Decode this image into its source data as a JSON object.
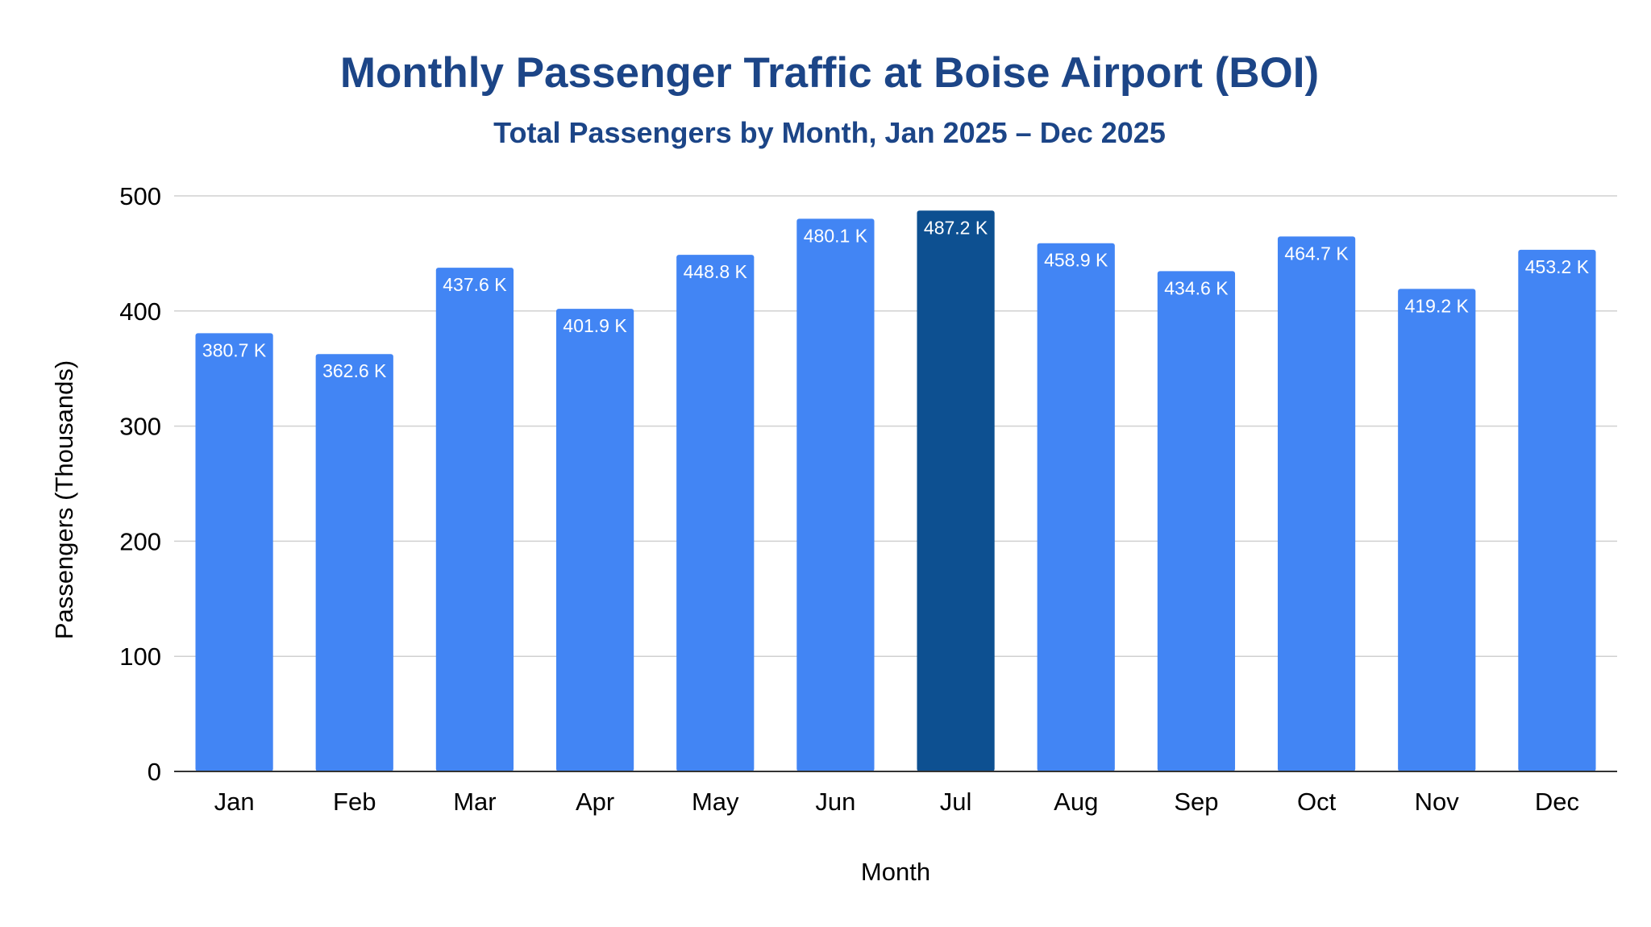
{
  "chart_data": {
    "type": "bar",
    "title": "Monthly Passenger Traffic at Boise Airport (BOI)",
    "subtitle": "Total Passengers by Month, Jan 2025 – Dec 2025",
    "xlabel": "Month",
    "ylabel": "Passengers (Thousands)",
    "ylim": [
      0,
      500
    ],
    "yticks": [
      "0",
      "100",
      "200",
      "300",
      "400",
      "500"
    ],
    "grid": true,
    "legend": "none",
    "categories": [
      "Jan",
      "Feb",
      "Mar",
      "Apr",
      "May",
      "Jun",
      "Jul",
      "Aug",
      "Sep",
      "Oct",
      "Nov",
      "Dec"
    ],
    "values": [
      380.7,
      362.6,
      437.6,
      401.9,
      448.8,
      480.1,
      487.2,
      458.9,
      434.6,
      464.7,
      419.2,
      453.2
    ],
    "data_labels": [
      "380.7 K",
      "362.6 K",
      "437.6 K",
      "401.9 K",
      "448.8 K",
      "480.1 K",
      "487.2 K",
      "458.9 K",
      "434.6 K",
      "464.7 K",
      "419.2 K",
      "453.2 K"
    ],
    "highlight_category": "Jul",
    "colors": {
      "bar": "#4285f4",
      "highlight": "#0d5091",
      "title": "#1c4587"
    }
  }
}
